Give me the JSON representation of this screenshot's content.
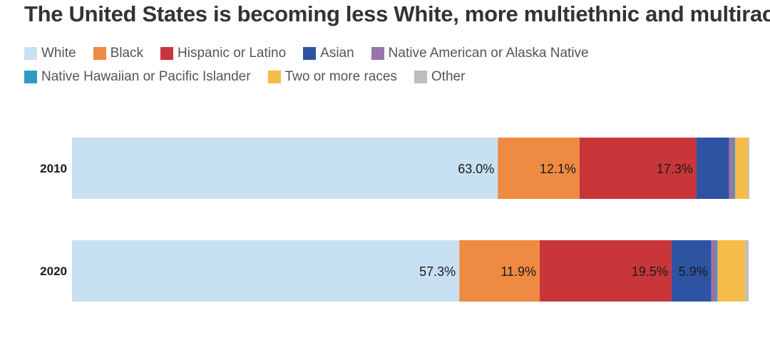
{
  "title": "The United States is becoming less White, more multiethnic and multiracial",
  "legend": [
    {
      "label": "White",
      "color": "#c8e1f2"
    },
    {
      "label": "Black",
      "color": "#ef8a43"
    },
    {
      "label": "Hispanic or Latino",
      "color": "#c8363a"
    },
    {
      "label": "Asian",
      "color": "#2f53a3"
    },
    {
      "label": "Native American or Alaska Native",
      "color": "#9a74a8"
    },
    {
      "label": "Native Hawaiian or Pacific Islander",
      "color": "#2f9bc5"
    },
    {
      "label": "Two or more races",
      "color": "#f5bc4a"
    },
    {
      "label": "Other",
      "color": "#bdbdbd"
    }
  ],
  "chart_data": {
    "type": "bar",
    "orientation": "horizontal",
    "stacked": true,
    "title": "The United States is becoming less White, more multiethnic and multiracial",
    "categories": [
      "2010",
      "2020"
    ],
    "xlim": [
      0,
      100
    ],
    "unit": "%",
    "series": [
      {
        "name": "White",
        "values": [
          63.0,
          57.3
        ],
        "labels": [
          "63.0%",
          "57.3%"
        ]
      },
      {
        "name": "Black",
        "values": [
          12.1,
          11.9
        ],
        "labels": [
          "12.1%",
          "11.9%"
        ]
      },
      {
        "name": "Hispanic or Latino",
        "values": [
          17.3,
          19.5
        ],
        "labels": [
          "17.3%",
          "19.5%"
        ]
      },
      {
        "name": "Asian",
        "values": [
          4.8,
          5.9
        ],
        "labels": [
          "",
          "5.9%"
        ]
      },
      {
        "name": "Native American or Alaska Native",
        "values": [
          0.7,
          0.7
        ],
        "labels": [
          "",
          ""
        ]
      },
      {
        "name": "Native Hawaiian or Pacific Islander",
        "values": [
          0.2,
          0.2
        ],
        "labels": [
          "",
          ""
        ]
      },
      {
        "name": "Two or more races",
        "values": [
          1.9,
          4.1
        ],
        "labels": [
          "",
          ""
        ]
      },
      {
        "name": "Other",
        "values": [
          0.2,
          0.5
        ],
        "labels": [
          "",
          ""
        ]
      }
    ]
  }
}
